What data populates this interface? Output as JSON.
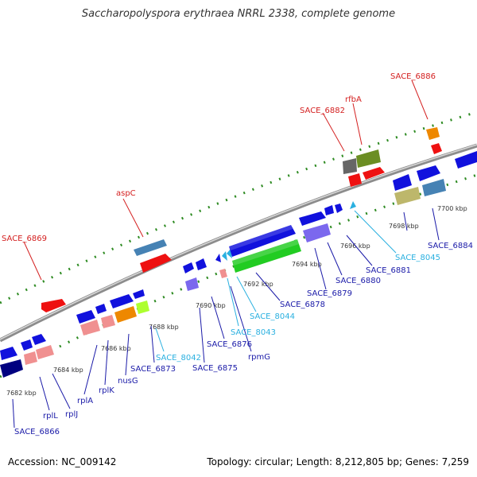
{
  "title": "Saccharopolyspora erythraea NRRL 2338, complete genome",
  "footer": {
    "accession": "Accession: NC_009142",
    "topology": "Topology: circular; Length: 8,212,805 bp; Genes: 7,259"
  },
  "colors": {
    "backbone": "#9a9a9a",
    "tick": "#2e8b22",
    "label_red": "#d42020",
    "label_blue": "#1a1aa8",
    "label_cyan": "#2ab0e0",
    "kbp_text": "#333333"
  },
  "kbp_ticks": [
    {
      "id": "7682",
      "text": "7682 kbp"
    },
    {
      "id": "7684",
      "text": "7684 kbp"
    },
    {
      "id": "7686",
      "text": "7686 kbp"
    },
    {
      "id": "7688",
      "text": "7688 kbp"
    },
    {
      "id": "7690",
      "text": "7690 kbp"
    },
    {
      "id": "7692",
      "text": "7692 kbp"
    },
    {
      "id": "7694",
      "text": "7694 kbp"
    },
    {
      "id": "7696",
      "text": "7696 kbp"
    },
    {
      "id": "7698",
      "text": "7698 kbp"
    },
    {
      "id": "7700",
      "text": "7700 kbp"
    }
  ],
  "gene_labels": [
    {
      "id": "sace-6869",
      "text": "SACE_6869",
      "color": "red"
    },
    {
      "id": "aspc",
      "text": "aspC",
      "color": "red"
    },
    {
      "id": "sace-6882",
      "text": "SACE_6882",
      "color": "red"
    },
    {
      "id": "rfba",
      "text": "rfbA",
      "color": "red"
    },
    {
      "id": "sace-6886",
      "text": "SACE_6886",
      "color": "red"
    },
    {
      "id": "sace-6866",
      "text": "SACE_6866",
      "color": "blue"
    },
    {
      "id": "rpll",
      "text": "rplL",
      "color": "blue"
    },
    {
      "id": "rplj",
      "text": "rplJ",
      "color": "blue"
    },
    {
      "id": "rpla",
      "text": "rplA",
      "color": "blue"
    },
    {
      "id": "rplk",
      "text": "rplK",
      "color": "blue"
    },
    {
      "id": "nusg",
      "text": "nusG",
      "color": "blue"
    },
    {
      "id": "sace-6873",
      "text": "SACE_6873",
      "color": "blue"
    },
    {
      "id": "sace-8042",
      "text": "SACE_8042",
      "color": "cyan"
    },
    {
      "id": "sace-6875",
      "text": "SACE_6875",
      "color": "blue"
    },
    {
      "id": "sace-6876",
      "text": "SACE_6876",
      "color": "blue"
    },
    {
      "id": "sace-8043",
      "text": "SACE_8043",
      "color": "cyan"
    },
    {
      "id": "rpmg",
      "text": "rpmG",
      "color": "blue"
    },
    {
      "id": "sace-8044",
      "text": "SACE_8044",
      "color": "cyan"
    },
    {
      "id": "sace-6878",
      "text": "SACE_6878",
      "color": "blue"
    },
    {
      "id": "sace-6879",
      "text": "SACE_6879",
      "color": "blue"
    },
    {
      "id": "sace-6880",
      "text": "SACE_6880",
      "color": "blue"
    },
    {
      "id": "sace-6881",
      "text": "SACE_6881",
      "color": "blue"
    },
    {
      "id": "sace-8045",
      "text": "SACE_8045",
      "color": "cyan"
    },
    {
      "id": "sace-6884",
      "text": "SACE_6884",
      "color": "blue"
    }
  ]
}
